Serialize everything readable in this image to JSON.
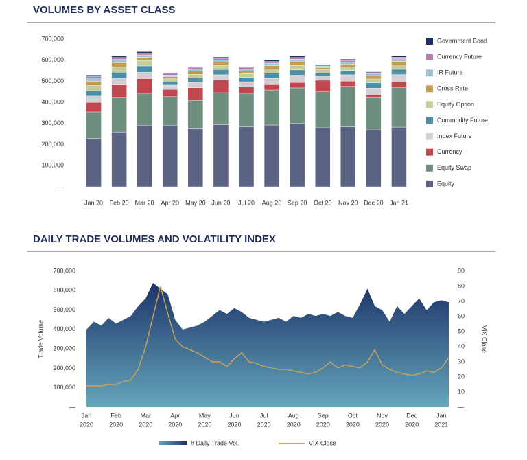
{
  "chart_data": [
    {
      "type": "stacked-bar",
      "title": "VOLUMES BY ASSET CLASS",
      "categories": [
        "Jan 20",
        "Feb 20",
        "Mar 20",
        "Apr 20",
        "May 20",
        "Jun 20",
        "Jul 20",
        "Aug 20",
        "Sep 20",
        "Oct 20",
        "Nov 20",
        "Dec 20",
        "Jan 21"
      ],
      "series": [
        {
          "name": "Equity",
          "color": "#5b6382",
          "values": [
            230000,
            260000,
            290000,
            290000,
            275000,
            295000,
            285000,
            293000,
            300000,
            280000,
            285000,
            270000,
            283000
          ]
        },
        {
          "name": "Equity Swap",
          "color": "#6f8f7e",
          "values": [
            125000,
            163000,
            153000,
            137000,
            135000,
            151000,
            158000,
            166000,
            169000,
            170000,
            191000,
            153000,
            189000
          ]
        },
        {
          "name": "Currency",
          "color": "#c0474f",
          "values": [
            45000,
            60000,
            70000,
            35000,
            60000,
            60000,
            30000,
            25000,
            25000,
            55000,
            25000,
            15000,
            25000
          ]
        },
        {
          "name": "Index Future",
          "color": "#cfcfd4",
          "values": [
            30000,
            30000,
            30000,
            20000,
            25000,
            25000,
            25000,
            30000,
            35000,
            20000,
            30000,
            30000,
            35000
          ]
        },
        {
          "name": "Commodity Future",
          "color": "#4a8ea8",
          "values": [
            25000,
            30000,
            30000,
            15000,
            20000,
            25000,
            20000,
            25000,
            25000,
            15000,
            20000,
            25000,
            25000
          ]
        },
        {
          "name": "Equity Option",
          "color": "#c6cc95",
          "values": [
            25000,
            25000,
            25000,
            15000,
            18000,
            20000,
            18000,
            20000,
            22000,
            15000,
            18000,
            18000,
            20000
          ]
        },
        {
          "name": "Cross Rate",
          "color": "#c59b4f",
          "values": [
            20000,
            20000,
            15000,
            10000,
            15000,
            15000,
            12000,
            15000,
            17000,
            10000,
            13000,
            14000,
            17000
          ]
        },
        {
          "name": "IR Future",
          "color": "#9cc3d6",
          "values": [
            15000,
            15000,
            12000,
            8000,
            10000,
            10000,
            10000,
            12000,
            12000,
            7000,
            10000,
            10000,
            12000
          ]
        },
        {
          "name": "Currency Future",
          "color": "#b77fb1",
          "values": [
            8000,
            10000,
            8000,
            5000,
            7000,
            8000,
            7000,
            8000,
            8000,
            5000,
            7000,
            6000,
            8000
          ]
        },
        {
          "name": "Government Bond",
          "color": "#1c2f5e",
          "values": [
            7000,
            7000,
            7000,
            5000,
            5000,
            6000,
            5000,
            6000,
            7000,
            3000,
            6000,
            4000,
            6000
          ]
        }
      ],
      "ylim": [
        0,
        700000
      ],
      "yticks": [
        {
          "value": 0,
          "label": "—"
        },
        {
          "value": 100000,
          "label": "100,000"
        },
        {
          "value": 200000,
          "label": "200,000"
        },
        {
          "value": 300000,
          "label": "300,000"
        },
        {
          "value": 400000,
          "label": "400,000"
        },
        {
          "value": 500000,
          "label": "500,000"
        },
        {
          "value": 600000,
          "label": "600,000"
        },
        {
          "value": 700000,
          "label": "700,000"
        }
      ]
    },
    {
      "type": "area-line",
      "title": "DAILY TRADE VOLUMES AND VOLATILITY INDEX",
      "y_label": "Trade Volume",
      "y2_label": "VIX Close",
      "x": [
        0,
        0.25,
        0.5,
        0.75,
        1,
        1.25,
        1.5,
        1.75,
        2,
        2.25,
        2.5,
        2.75,
        3,
        3.25,
        3.5,
        3.75,
        4,
        4.25,
        4.5,
        4.75,
        5,
        5.25,
        5.5,
        5.75,
        6,
        6.25,
        6.5,
        6.75,
        7,
        7.25,
        7.5,
        7.75,
        8,
        8.25,
        8.5,
        8.75,
        9,
        9.25,
        9.5,
        9.75,
        10,
        10.25,
        10.5,
        10.75,
        11,
        11.25,
        11.5,
        11.75,
        12,
        12.25
      ],
      "xlim": [
        0,
        12.25
      ],
      "xticks": [
        {
          "value": 0,
          "label": "Jan"
        },
        {
          "value": 1,
          "label": "Feb"
        },
        {
          "value": 2,
          "label": "Mar"
        },
        {
          "value": 3,
          "label": "Apr"
        },
        {
          "value": 4,
          "label": "May"
        },
        {
          "value": 5,
          "label": "Jun"
        },
        {
          "value": 6,
          "label": "Jul"
        },
        {
          "value": 7,
          "label": "Aug"
        },
        {
          "value": 8,
          "label": "Sep"
        },
        {
          "value": 9,
          "label": "Oct"
        },
        {
          "value": 10,
          "label": "Nov"
        },
        {
          "value": 11,
          "label": "Dec"
        },
        {
          "value": 12,
          "label": "Jan"
        }
      ],
      "xtick_years": [
        "2020",
        "2020",
        "2020",
        "2020",
        "2020",
        "2020",
        "2020",
        "2020",
        "2020",
        "2020",
        "2020",
        "2020",
        "2021"
      ],
      "series": [
        {
          "name": "# Daily Trade Vol.",
          "type": "area",
          "color": "#1d3468",
          "color_bottom": "#64a6bc",
          "values": [
            400000,
            440000,
            420000,
            460000,
            430000,
            450000,
            470000,
            520000,
            560000,
            640000,
            610000,
            580000,
            450000,
            400000,
            410000,
            420000,
            440000,
            470000,
            500000,
            480000,
            510000,
            490000,
            460000,
            450000,
            440000,
            450000,
            460000,
            440000,
            470000,
            460000,
            480000,
            470000,
            480000,
            470000,
            490000,
            470000,
            460000,
            530000,
            610000,
            520000,
            500000,
            440000,
            520000,
            480000,
            520000,
            560000,
            500000,
            540000,
            550000,
            540000
          ]
        },
        {
          "name": "VIX Close",
          "type": "line",
          "axis": "y2",
          "color": "#c9a25a",
          "values": [
            14,
            14,
            14,
            15,
            15,
            17,
            18,
            25,
            40,
            60,
            80,
            62,
            45,
            40,
            38,
            36,
            33,
            30,
            30,
            27,
            32,
            36,
            30,
            29,
            27,
            26,
            25,
            25,
            24,
            23,
            22,
            23,
            26,
            30,
            26,
            28,
            27,
            26,
            30,
            38,
            28,
            25,
            23,
            22,
            21,
            22,
            24,
            23,
            26,
            33
          ]
        }
      ],
      "ylim": [
        0,
        700000
      ],
      "yticks": [
        {
          "value": 0,
          "label": "—"
        },
        {
          "value": 100000,
          "label": "100,000"
        },
        {
          "value": 200000,
          "label": "200,000"
        },
        {
          "value": 300000,
          "label": "300,000"
        },
        {
          "value": 400000,
          "label": "400,000"
        },
        {
          "value": 500000,
          "label": "500,000"
        },
        {
          "value": 600000,
          "label": "600,000"
        },
        {
          "value": 700000,
          "label": "700,000"
        }
      ],
      "y2lim": [
        0,
        90
      ],
      "y2ticks": [
        {
          "value": 0,
          "label": "—"
        },
        10,
        20,
        30,
        40,
        50,
        60,
        70,
        80,
        90
      ]
    }
  ]
}
